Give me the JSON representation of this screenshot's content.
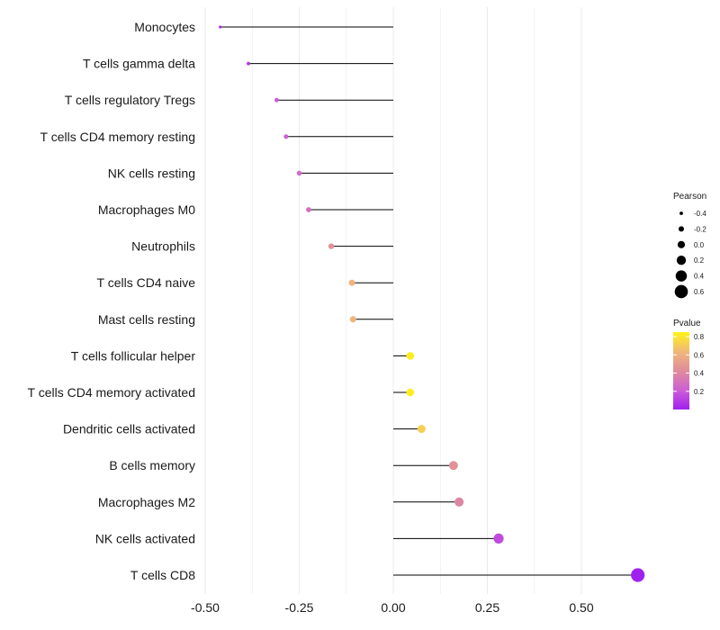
{
  "chart_data": {
    "type": "scatter",
    "subtype": "lollipop",
    "title": "",
    "xlabel": "",
    "ylabel": "",
    "xlim": [
      -0.5,
      0.7
    ],
    "x_ticks": [
      -0.5,
      -0.25,
      0.0,
      0.25,
      0.5
    ],
    "x_tick_labels": [
      "-0.50",
      "-0.25",
      "0.00",
      "0.25",
      "0.50"
    ],
    "grid": true,
    "points": [
      {
        "category": "Monocytes",
        "pearson": -0.46,
        "pvalue": 0.05
      },
      {
        "category": "T cells gamma delta",
        "pearson": -0.385,
        "pvalue": 0.1
      },
      {
        "category": "T cells regulatory  Tregs ",
        "pearson": -0.31,
        "pvalue": 0.2
      },
      {
        "category": "T cells CD4 memory resting",
        "pearson": -0.285,
        "pvalue": 0.22
      },
      {
        "category": "NK cells resting",
        "pearson": -0.25,
        "pvalue": 0.27
      },
      {
        "category": "Macrophages M0",
        "pearson": -0.225,
        "pvalue": 0.29
      },
      {
        "category": "Neutrophils",
        "pearson": -0.165,
        "pvalue": 0.45
      },
      {
        "category": "T cells CD4 naive",
        "pearson": -0.11,
        "pvalue": 0.62
      },
      {
        "category": "Mast cells resting",
        "pearson": -0.107,
        "pvalue": 0.63
      },
      {
        "category": "T cells follicular helper",
        "pearson": 0.045,
        "pvalue": 0.83
      },
      {
        "category": "T cells CD4 memory activated",
        "pearson": 0.045,
        "pvalue": 0.83
      },
      {
        "category": "Dendritic cells activated",
        "pearson": 0.075,
        "pvalue": 0.72
      },
      {
        "category": "B cells memory",
        "pearson": 0.16,
        "pvalue": 0.45
      },
      {
        "category": "Macrophages M2",
        "pearson": 0.175,
        "pvalue": 0.4
      },
      {
        "category": "NK cells activated",
        "pearson": 0.28,
        "pvalue": 0.15
      },
      {
        "category": "T cells CD8",
        "pearson": 0.65,
        "pvalue": 0.001
      }
    ],
    "legend_size": {
      "title": "Pearson",
      "values": [
        -0.4,
        -0.2,
        0.0,
        0.2,
        0.4,
        0.6
      ],
      "labels": [
        "-0.4",
        "-0.2",
        "0.0",
        "0.2",
        "0.4",
        "0.6"
      ]
    },
    "legend_color": {
      "title": "Pvalue",
      "ticks": [
        0.2,
        0.4,
        0.6,
        0.8
      ],
      "tick_labels": [
        "0.2",
        "0.4",
        "0.6",
        "0.8"
      ],
      "range": [
        0.0,
        0.85
      ],
      "colors": [
        "#a020f0",
        "#cc5fd5",
        "#e08c9c",
        "#f0b878",
        "#fff318"
      ]
    },
    "colors": {
      "stem": "#000000",
      "grid": "#ebebeb",
      "legend_marker": "#000000"
    }
  }
}
